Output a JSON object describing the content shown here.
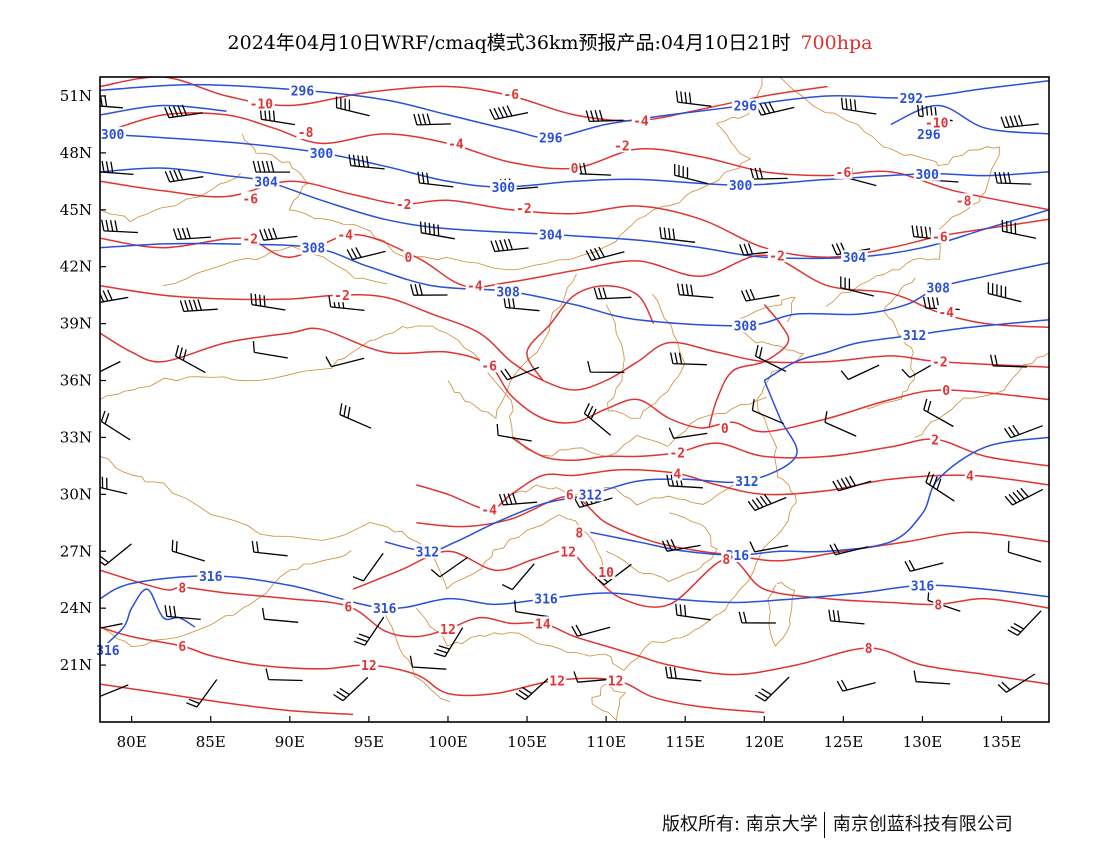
{
  "title": {
    "main": "2024年04月10日WRF/cmaq模式36km预报产品:04月10日21时",
    "level": "700hpa"
  },
  "colors": {
    "geopotential": "#2a4fd8",
    "temperature": "#e03434",
    "boundary": "#d08a36",
    "wind": "#000000",
    "frame": "#000000"
  },
  "map": {
    "lon_range": [
      78,
      138
    ],
    "lat_range": [
      18,
      52
    ],
    "lon_ticks": [
      "80E",
      "85E",
      "90E",
      "95E",
      "100E",
      "105E",
      "110E",
      "115E",
      "120E",
      "125E",
      "130E",
      "135E"
    ],
    "lat_ticks": [
      "21N",
      "24N",
      "27N",
      "30N",
      "33N",
      "36N",
      "39N",
      "42N",
      "45N",
      "48N",
      "51N"
    ]
  },
  "contour_labels": {
    "height": [
      {
        "text": "296",
        "lon": 90.8,
        "lat": 51.3
      },
      {
        "text": "300",
        "lon": 78.8,
        "lat": 49.0
      },
      {
        "text": "300",
        "lon": 92.0,
        "lat": 48.0
      },
      {
        "text": "304",
        "lon": 88.5,
        "lat": 46.5
      },
      {
        "text": "308",
        "lon": 91.5,
        "lat": 43.0
      },
      {
        "text": "296",
        "lon": 106.5,
        "lat": 48.8
      },
      {
        "text": "300",
        "lon": 103.5,
        "lat": 46.2
      },
      {
        "text": "304",
        "lon": 106.5,
        "lat": 43.7
      },
      {
        "text": "308",
        "lon": 103.8,
        "lat": 40.7
      },
      {
        "text": "296",
        "lon": 118.8,
        "lat": 50.5
      },
      {
        "text": "300",
        "lon": 118.5,
        "lat": 46.3
      },
      {
        "text": "308",
        "lon": 118.8,
        "lat": 38.9
      },
      {
        "text": "292",
        "lon": 129.3,
        "lat": 50.9
      },
      {
        "text": "296",
        "lon": 130.4,
        "lat": 49.0
      },
      {
        "text": "300",
        "lon": 130.3,
        "lat": 46.9
      },
      {
        "text": "304",
        "lon": 125.7,
        "lat": 42.5
      },
      {
        "text": "308",
        "lon": 131.0,
        "lat": 40.9
      },
      {
        "text": "312",
        "lon": 129.5,
        "lat": 38.4
      },
      {
        "text": "312",
        "lon": 118.9,
        "lat": 30.7
      },
      {
        "text": "312",
        "lon": 109.0,
        "lat": 30.0
      },
      {
        "text": "312",
        "lon": 98.7,
        "lat": 27.0
      },
      {
        "text": "316",
        "lon": 118.3,
        "lat": 26.8
      },
      {
        "text": "316",
        "lon": 85.0,
        "lat": 25.7
      },
      {
        "text": "316",
        "lon": 106.2,
        "lat": 24.5
      },
      {
        "text": "316",
        "lon": 96.0,
        "lat": 24.0
      },
      {
        "text": "316",
        "lon": 130.0,
        "lat": 25.2
      },
      {
        "text": "316",
        "lon": 78.5,
        "lat": 21.8
      }
    ],
    "temperature": [
      {
        "text": "-10",
        "lon": 88.2,
        "lat": 50.6
      },
      {
        "text": "-8",
        "lon": 91.0,
        "lat": 49.1
      },
      {
        "text": "-6",
        "lon": 87.5,
        "lat": 45.6
      },
      {
        "text": "-2",
        "lon": 87.5,
        "lat": 43.5
      },
      {
        "text": "-4",
        "lon": 93.5,
        "lat": 43.7
      },
      {
        "text": "-2",
        "lon": 97.2,
        "lat": 45.3
      },
      {
        "text": "0",
        "lon": 97.5,
        "lat": 42.5
      },
      {
        "text": "-2",
        "lon": 93.3,
        "lat": 40.5
      },
      {
        "text": "-2",
        "lon": 104.8,
        "lat": 45.1
      },
      {
        "text": "-4",
        "lon": 100.5,
        "lat": 48.5
      },
      {
        "text": "-6",
        "lon": 104.0,
        "lat": 51.1
      },
      {
        "text": "-4",
        "lon": 112.2,
        "lat": 49.7
      },
      {
        "text": "-2",
        "lon": 111.0,
        "lat": 48.4
      },
      {
        "text": "0",
        "lon": 108.0,
        "lat": 47.2
      },
      {
        "text": "-4",
        "lon": 101.7,
        "lat": 41.0
      },
      {
        "text": "-6",
        "lon": 102.6,
        "lat": 36.8
      },
      {
        "text": "-2",
        "lon": 120.8,
        "lat": 42.6
      },
      {
        "text": "-6",
        "lon": 125.0,
        "lat": 47.0
      },
      {
        "text": "-8",
        "lon": 132.6,
        "lat": 45.5
      },
      {
        "text": "-6",
        "lon": 131.1,
        "lat": 43.6
      },
      {
        "text": "-10",
        "lon": 130.9,
        "lat": 49.6
      },
      {
        "text": "-4",
        "lon": 131.5,
        "lat": 39.6
      },
      {
        "text": "-2",
        "lon": 131.1,
        "lat": 37.0
      },
      {
        "text": "0",
        "lon": 131.5,
        "lat": 35.5
      },
      {
        "text": "0",
        "lon": 117.5,
        "lat": 33.5
      },
      {
        "text": "-2",
        "lon": 114.5,
        "lat": 32.2
      },
      {
        "text": "4",
        "lon": 114.5,
        "lat": 31.1
      },
      {
        "text": "2",
        "lon": 130.8,
        "lat": 32.9
      },
      {
        "text": "4",
        "lon": 133.0,
        "lat": 31.0
      },
      {
        "text": "-4",
        "lon": 102.6,
        "lat": 29.2
      },
      {
        "text": "6",
        "lon": 107.7,
        "lat": 30.0
      },
      {
        "text": "8",
        "lon": 108.3,
        "lat": 28.0
      },
      {
        "text": "10",
        "lon": 110.0,
        "lat": 25.9
      },
      {
        "text": "12",
        "lon": 107.6,
        "lat": 27.0
      },
      {
        "text": "8",
        "lon": 117.6,
        "lat": 26.6
      },
      {
        "text": "6",
        "lon": 93.7,
        "lat": 24.1
      },
      {
        "text": "8",
        "lon": 83.2,
        "lat": 25.1
      },
      {
        "text": "6",
        "lon": 83.2,
        "lat": 22.0
      },
      {
        "text": "14",
        "lon": 106.0,
        "lat": 23.2
      },
      {
        "text": "12",
        "lon": 100.0,
        "lat": 22.9
      },
      {
        "text": "12",
        "lon": 95.0,
        "lat": 21.0
      },
      {
        "text": "12",
        "lon": 106.9,
        "lat": 20.2
      },
      {
        "text": "12",
        "lon": 110.6,
        "lat": 20.2
      },
      {
        "text": "8",
        "lon": 131.0,
        "lat": 24.2
      },
      {
        "text": "8",
        "lon": 126.6,
        "lat": 21.9
      }
    ]
  },
  "footer": {
    "left": "版权所有: 南京大学",
    "right": "南京创蓝科技有限公司"
  }
}
